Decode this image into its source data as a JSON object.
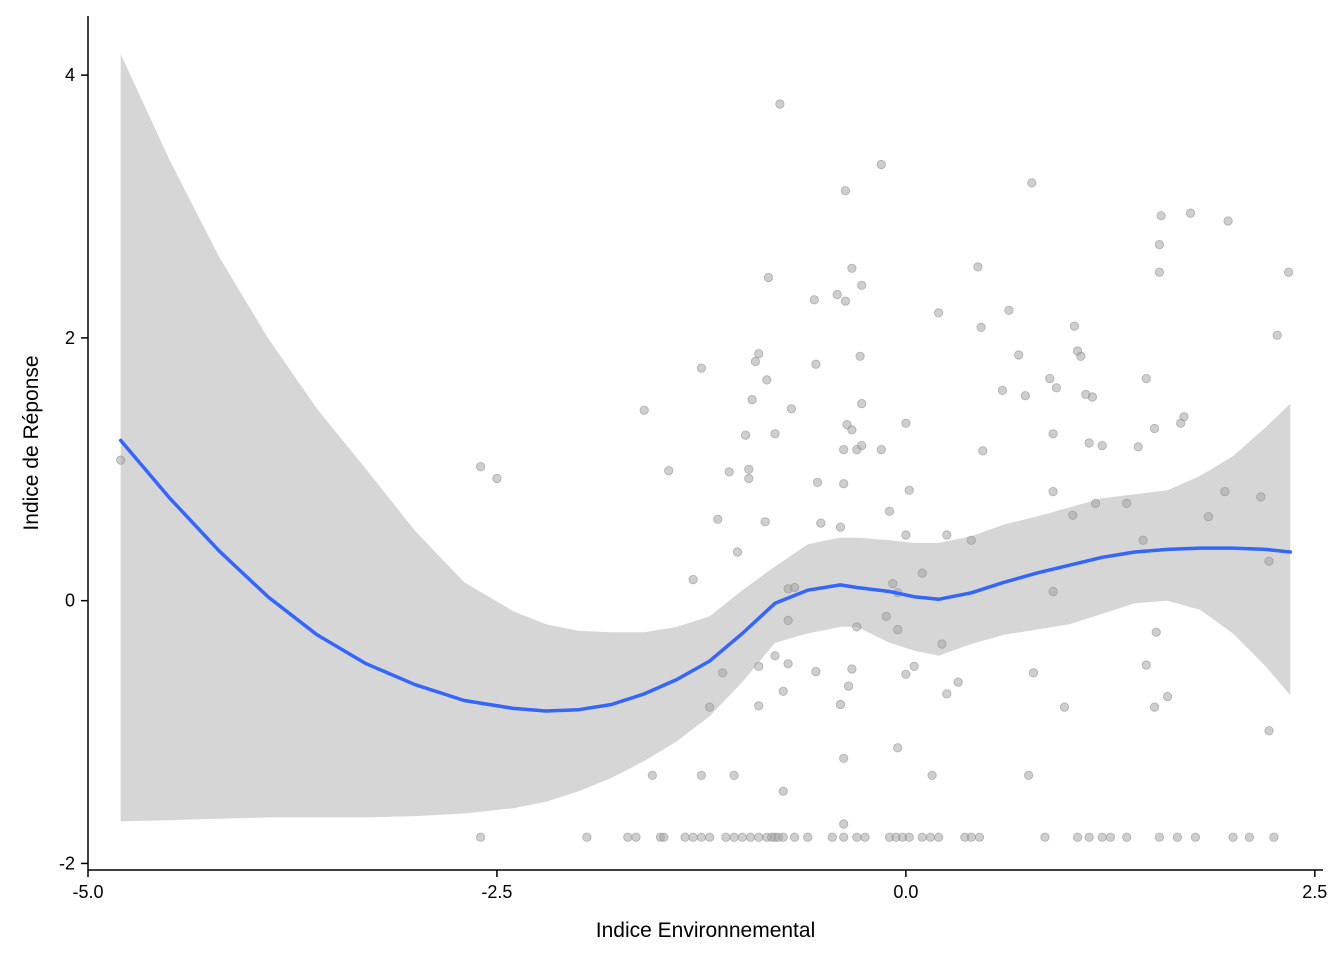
{
  "chart_data": {
    "type": "scatter",
    "xlabel": "Indice Environnemental",
    "ylabel": "Indice de Réponse",
    "xlim": [
      -5.0,
      2.55
    ],
    "ylim": [
      -2.05,
      4.45
    ],
    "x_ticks": [
      -5.0,
      -2.5,
      0.0,
      2.5
    ],
    "x_tick_labels": [
      "-5.0",
      "-2.5",
      "0.0",
      "2.5"
    ],
    "y_ticks": [
      -2,
      0,
      2,
      4
    ],
    "y_tick_labels": [
      "-2",
      "0",
      "2",
      "4"
    ],
    "grid": false,
    "colors": {
      "smooth_line": "#3366ff",
      "ribbon": "#d6d6d6",
      "points": "#a6a6a6",
      "points_stroke": "#8a8a8a"
    },
    "points": [
      [
        -4.8,
        1.07
      ],
      [
        -2.6,
        1.02
      ],
      [
        -2.5,
        0.93
      ],
      [
        -1.6,
        1.45
      ],
      [
        -1.45,
        0.99
      ],
      [
        -1.3,
        0.16
      ],
      [
        -1.25,
        1.77
      ],
      [
        -1.15,
        0.62
      ],
      [
        -1.08,
        0.98
      ],
      [
        -1.03,
        0.37
      ],
      [
        -0.98,
        1.26
      ],
      [
        -0.96,
        1.0
      ],
      [
        -0.96,
        0.93
      ],
      [
        -0.94,
        1.53
      ],
      [
        -0.9,
        1.88
      ],
      [
        -0.92,
        1.82
      ],
      [
        -0.85,
        1.68
      ],
      [
        -0.84,
        2.46
      ],
      [
        -0.86,
        0.6
      ],
      [
        -0.8,
        1.27
      ],
      [
        -0.77,
        3.78
      ],
      [
        -0.7,
        1.46
      ],
      [
        -0.72,
        0.09
      ],
      [
        -0.68,
        0.1
      ],
      [
        -0.56,
        2.29
      ],
      [
        -0.55,
        1.8
      ],
      [
        -0.54,
        0.9
      ],
      [
        -0.52,
        0.59
      ],
      [
        -0.42,
        2.33
      ],
      [
        -0.4,
        0.56
      ],
      [
        -0.37,
        2.28
      ],
      [
        -0.37,
        3.12
      ],
      [
        -0.36,
        1.34
      ],
      [
        -0.33,
        1.3
      ],
      [
        -0.33,
        2.53
      ],
      [
        -0.3,
        1.15
      ],
      [
        -0.38,
        1.15
      ],
      [
        -0.38,
        0.89
      ],
      [
        -0.28,
        1.86
      ],
      [
        -0.27,
        2.4
      ],
      [
        -0.27,
        1.18
      ],
      [
        -0.27,
        1.5
      ],
      [
        -0.15,
        3.32
      ],
      [
        -0.15,
        1.15
      ],
      [
        -0.1,
        0.68
      ],
      [
        -0.08,
        0.13
      ],
      [
        -0.05,
        0.06
      ],
      [
        0.0,
        0.5
      ],
      [
        0.0,
        1.35
      ],
      [
        0.02,
        0.84
      ],
      [
        0.1,
        0.21
      ],
      [
        0.2,
        2.19
      ],
      [
        0.25,
        0.5
      ],
      [
        0.4,
        0.46
      ],
      [
        0.44,
        2.54
      ],
      [
        0.46,
        2.08
      ],
      [
        0.47,
        1.14
      ],
      [
        0.59,
        1.6
      ],
      [
        0.63,
        2.21
      ],
      [
        0.69,
        1.87
      ],
      [
        0.73,
        1.56
      ],
      [
        0.77,
        3.18
      ],
      [
        0.88,
        1.69
      ],
      [
        0.9,
        1.27
      ],
      [
        0.9,
        0.83
      ],
      [
        0.9,
        0.07
      ],
      [
        0.92,
        1.62
      ],
      [
        1.02,
        0.65
      ],
      [
        1.03,
        2.09
      ],
      [
        1.05,
        1.9
      ],
      [
        1.07,
        1.86
      ],
      [
        1.1,
        1.57
      ],
      [
        1.12,
        1.2
      ],
      [
        1.14,
        1.55
      ],
      [
        1.16,
        0.74
      ],
      [
        1.2,
        1.18
      ],
      [
        1.35,
        0.74
      ],
      [
        1.42,
        1.17
      ],
      [
        1.45,
        0.46
      ],
      [
        1.47,
        1.69
      ],
      [
        1.52,
        1.31
      ],
      [
        1.55,
        2.71
      ],
      [
        1.55,
        2.5
      ],
      [
        1.56,
        2.93
      ],
      [
        1.68,
        1.35
      ],
      [
        1.7,
        1.4
      ],
      [
        1.74,
        2.95
      ],
      [
        1.85,
        0.64
      ],
      [
        1.95,
        0.83
      ],
      [
        1.97,
        2.89
      ],
      [
        2.17,
        0.79
      ],
      [
        2.22,
        0.3
      ],
      [
        2.27,
        2.02
      ],
      [
        2.34,
        2.5
      ],
      [
        -0.72,
        -0.15
      ],
      [
        -0.8,
        -0.42
      ],
      [
        -0.9,
        -0.5
      ],
      [
        -0.72,
        -0.48
      ],
      [
        -1.12,
        -0.55
      ],
      [
        -0.55,
        -0.54
      ],
      [
        -0.4,
        -0.79
      ],
      [
        -0.33,
        -0.52
      ],
      [
        -0.3,
        -0.2
      ],
      [
        -0.35,
        -0.65
      ],
      [
        -0.75,
        -0.69
      ],
      [
        -0.9,
        -0.8
      ],
      [
        -1.2,
        -0.81
      ],
      [
        -0.38,
        -1.2
      ],
      [
        -0.05,
        -0.22
      ],
      [
        -0.12,
        -0.12
      ],
      [
        -0.05,
        -1.12
      ],
      [
        0.0,
        -0.56
      ],
      [
        0.05,
        -0.5
      ],
      [
        0.22,
        -0.33
      ],
      [
        0.25,
        -0.71
      ],
      [
        0.32,
        -0.62
      ],
      [
        0.78,
        -0.55
      ],
      [
        0.97,
        -0.81
      ],
      [
        1.47,
        -0.49
      ],
      [
        1.53,
        -0.24
      ],
      [
        1.52,
        -0.81
      ],
      [
        1.6,
        -0.73
      ],
      [
        2.22,
        -0.99
      ],
      [
        -1.55,
        -1.33
      ],
      [
        -1.25,
        -1.33
      ],
      [
        -1.05,
        -1.33
      ],
      [
        -0.75,
        -1.45
      ],
      [
        0.16,
        -1.33
      ],
      [
        0.75,
        -1.33
      ],
      [
        -0.38,
        -1.7
      ],
      [
        -2.6,
        -1.8
      ],
      [
        -1.95,
        -1.8
      ],
      [
        -1.7,
        -1.8
      ],
      [
        -1.65,
        -1.8
      ],
      [
        -1.5,
        -1.8
      ],
      [
        -1.48,
        -1.8
      ],
      [
        -1.35,
        -1.8
      ],
      [
        -1.3,
        -1.8
      ],
      [
        -1.25,
        -1.8
      ],
      [
        -1.2,
        -1.8
      ],
      [
        -1.1,
        -1.8
      ],
      [
        -1.05,
        -1.8
      ],
      [
        -1.0,
        -1.8
      ],
      [
        -0.95,
        -1.8
      ],
      [
        -0.9,
        -1.8
      ],
      [
        -0.85,
        -1.8
      ],
      [
        -0.82,
        -1.8
      ],
      [
        -0.8,
        -1.8
      ],
      [
        -0.78,
        -1.8
      ],
      [
        -0.75,
        -1.8
      ],
      [
        -0.68,
        -1.8
      ],
      [
        -0.6,
        -1.8
      ],
      [
        -0.45,
        -1.8
      ],
      [
        -0.38,
        -1.8
      ],
      [
        -0.3,
        -1.8
      ],
      [
        -0.25,
        -1.8
      ],
      [
        -0.1,
        -1.8
      ],
      [
        -0.06,
        -1.8
      ],
      [
        -0.02,
        -1.8
      ],
      [
        0.02,
        -1.8
      ],
      [
        0.1,
        -1.8
      ],
      [
        0.15,
        -1.8
      ],
      [
        0.2,
        -1.8
      ],
      [
        0.36,
        -1.8
      ],
      [
        0.4,
        -1.8
      ],
      [
        0.45,
        -1.8
      ],
      [
        0.85,
        -1.8
      ],
      [
        1.05,
        -1.8
      ],
      [
        1.12,
        -1.8
      ],
      [
        1.2,
        -1.8
      ],
      [
        1.25,
        -1.8
      ],
      [
        1.35,
        -1.8
      ],
      [
        1.55,
        -1.8
      ],
      [
        1.66,
        -1.8
      ],
      [
        1.77,
        -1.8
      ],
      [
        2.0,
        -1.8
      ],
      [
        2.1,
        -1.8
      ],
      [
        2.25,
        -1.8
      ]
    ],
    "smooth": {
      "x": [
        -4.8,
        -4.5,
        -4.2,
        -3.9,
        -3.6,
        -3.3,
        -3.0,
        -2.7,
        -2.4,
        -2.2,
        -2.0,
        -1.8,
        -1.6,
        -1.4,
        -1.2,
        -1.0,
        -0.8,
        -0.6,
        -0.4,
        -0.3,
        -0.1,
        0.05,
        0.2,
        0.4,
        0.6,
        0.8,
        1.0,
        1.2,
        1.4,
        1.6,
        1.8,
        2.0,
        2.2,
        2.35
      ],
      "y": [
        1.22,
        0.78,
        0.38,
        0.03,
        -0.26,
        -0.48,
        -0.64,
        -0.76,
        -0.82,
        -0.84,
        -0.83,
        -0.79,
        -0.71,
        -0.6,
        -0.46,
        -0.25,
        -0.02,
        0.08,
        0.12,
        0.1,
        0.07,
        0.03,
        0.01,
        0.06,
        0.14,
        0.21,
        0.27,
        0.33,
        0.37,
        0.39,
        0.4,
        0.4,
        0.39,
        0.37
      ],
      "upper": [
        4.16,
        3.35,
        2.62,
        2.0,
        1.46,
        1.0,
        0.53,
        0.14,
        -0.08,
        -0.18,
        -0.23,
        -0.24,
        -0.24,
        -0.2,
        -0.12,
        0.08,
        0.26,
        0.43,
        0.48,
        0.48,
        0.46,
        0.44,
        0.44,
        0.49,
        0.58,
        0.64,
        0.71,
        0.78,
        0.81,
        0.84,
        0.95,
        1.1,
        1.32,
        1.5
      ],
      "lower": [
        -1.68,
        -1.67,
        -1.66,
        -1.65,
        -1.65,
        -1.65,
        -1.64,
        -1.62,
        -1.58,
        -1.53,
        -1.45,
        -1.35,
        -1.22,
        -1.07,
        -0.88,
        -0.62,
        -0.32,
        -0.25,
        -0.2,
        -0.2,
        -0.32,
        -0.38,
        -0.42,
        -0.33,
        -0.26,
        -0.22,
        -0.18,
        -0.1,
        -0.02,
        0.0,
        -0.07,
        -0.25,
        -0.5,
        -0.72
      ]
    }
  }
}
